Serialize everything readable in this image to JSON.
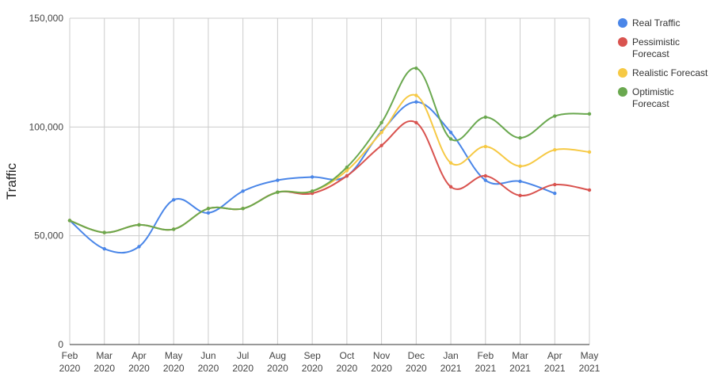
{
  "chart_data": {
    "type": "line",
    "ylabel": "Traffic",
    "xlabel": "",
    "ylim": [
      0,
      150000
    ],
    "y_ticks": [
      0,
      50000,
      100000,
      150000
    ],
    "y_tick_labels": [
      "0",
      "50,000",
      "100,000",
      "150,000"
    ],
    "grid": true,
    "smooth": true,
    "legend_position": "right",
    "categories": [
      {
        "month": "Feb",
        "year": "2020"
      },
      {
        "month": "Mar",
        "year": "2020"
      },
      {
        "month": "Apr",
        "year": "2020"
      },
      {
        "month": "May",
        "year": "2020"
      },
      {
        "month": "Jun",
        "year": "2020"
      },
      {
        "month": "Jul",
        "year": "2020"
      },
      {
        "month": "Aug",
        "year": "2020"
      },
      {
        "month": "Sep",
        "year": "2020"
      },
      {
        "month": "Oct",
        "year": "2020"
      },
      {
        "month": "Nov",
        "year": "2020"
      },
      {
        "month": "Dec",
        "year": "2020"
      },
      {
        "month": "Jan",
        "year": "2021"
      },
      {
        "month": "Feb",
        "year": "2021"
      },
      {
        "month": "Mar",
        "year": "2021"
      },
      {
        "month": "Apr",
        "year": "2021"
      },
      {
        "month": "May",
        "year": "2021"
      }
    ],
    "series": [
      {
        "name": "Real Traffic",
        "color": "#4a86e8",
        "values": [
          57000,
          44000,
          45000,
          66500,
          60500,
          70500,
          75500,
          77000,
          77500,
          98000,
          111500,
          97500,
          75500,
          75000,
          69500,
          null
        ]
      },
      {
        "name": "Pessimistic Forecast",
        "color": "#d9534f",
        "values": [
          57000,
          51500,
          55000,
          53000,
          62500,
          62500,
          70000,
          69500,
          77500,
          91500,
          102000,
          72500,
          77500,
          68500,
          73500,
          71000
        ]
      },
      {
        "name": "Realistic Forecast",
        "color": "#f6c944",
        "values": [
          57000,
          51500,
          55000,
          53000,
          62500,
          62500,
          70000,
          70500,
          80000,
          97500,
          114500,
          83500,
          91000,
          82000,
          89500,
          88500
        ]
      },
      {
        "name": "Optimistic Forecast",
        "color": "#6aa84f",
        "values": [
          57000,
          51500,
          55000,
          53000,
          62500,
          62500,
          70000,
          70500,
          81500,
          102000,
          127000,
          94500,
          104500,
          95000,
          105000,
          106000
        ]
      }
    ],
    "legend": [
      {
        "lines": [
          "Real Traffic"
        ],
        "color": "#4a86e8"
      },
      {
        "lines": [
          "Pessimistic",
          "Forecast"
        ],
        "color": "#d9534f"
      },
      {
        "lines": [
          "Realistic Forecast"
        ],
        "color": "#f6c944"
      },
      {
        "lines": [
          "Optimistic",
          "Forecast"
        ],
        "color": "#6aa84f"
      }
    ]
  }
}
